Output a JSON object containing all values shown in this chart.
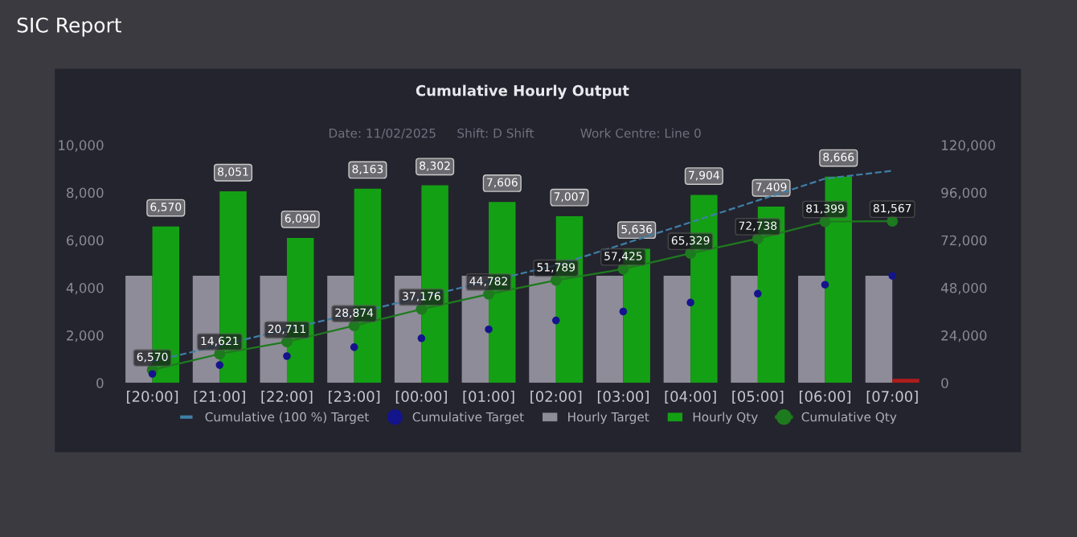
{
  "chart_data": {
    "type": "bar",
    "title": "Cumulative Hourly Output",
    "annotations": [
      "SIC Report",
      "Date: 11/02/2025",
      "Shift: D Shift",
      "Work Centre: Line 0"
    ],
    "categories": [
      "[20:00]",
      "[21:00]",
      "[22:00]",
      "[23:00]",
      "[00:00]",
      "[01:00]",
      "[02:00]",
      "[03:00]",
      "[04:00]",
      "[05:00]",
      "[06:00]",
      "[07:00]"
    ],
    "series": [
      {
        "name": "Cumulative (100 %) Target",
        "type": "line",
        "axis": "y2",
        "color": "#3f7fa6",
        "line_style": "dashed",
        "values": [
          10800,
          18900,
          27000,
          35100,
          43200,
          51300,
          59300,
          70000,
          81000,
          92000,
          103000,
          107000
        ]
      },
      {
        "name": "Cumulative Target",
        "type": "scatter",
        "axis": "y2",
        "color": "#14148c",
        "marker": "circle",
        "values": [
          4500,
          9000,
          13500,
          18000,
          22500,
          27000,
          31500,
          36000,
          40500,
          45000,
          49500,
          54000
        ]
      },
      {
        "name": "Hourly Target",
        "color": "#8e8c98",
        "values": [
          4500,
          4500,
          4500,
          4500,
          4500,
          4500,
          4500,
          4500,
          4500,
          4500,
          4500,
          4500
        ]
      },
      {
        "name": "Hourly Qty",
        "color": "#14a014",
        "colors": [
          "#14a014",
          "#14a014",
          "#14a014",
          "#14a014",
          "#14a014",
          "#14a014",
          "#14a014",
          "#14a014",
          "#14a014",
          "#14a014",
          "#14a014",
          "#b01c1c"
        ],
        "values": [
          6570,
          8051,
          6090,
          8163,
          8302,
          7606,
          7007,
          5636,
          7904,
          7409,
          8666,
          168
        ],
        "value_labels": [
          "6,570",
          "8,051",
          "6,090",
          "8,163",
          "8,302",
          "7,606",
          "7,007",
          "5,636",
          "7,904",
          "7,409",
          "8,666",
          null
        ]
      },
      {
        "name": "Cumulative Qty",
        "type": "line",
        "axis": "y2",
        "color": "#1e7a1e",
        "marker": "circle",
        "values": [
          6570,
          14621,
          20711,
          28874,
          37176,
          44782,
          51789,
          57425,
          65329,
          72738,
          81399,
          81567
        ],
        "value_labels": [
          "6,570",
          "14,621",
          "20,711",
          "28,874",
          "37,176",
          "44,782",
          "51,789",
          "57,425",
          "65,329",
          "72,738",
          "81,399",
          "81,567"
        ]
      }
    ],
    "ylim": [
      0,
      10000
    ],
    "yticks": [
      {
        "value": 0,
        "label": "0"
      },
      {
        "value": 2000,
        "label": "2,000"
      },
      {
        "value": 4000,
        "label": "4,000"
      },
      {
        "value": 6000,
        "label": "6,000"
      },
      {
        "value": 8000,
        "label": "8,000"
      },
      {
        "value": 10000,
        "label": "10,000"
      }
    ],
    "y2lim": [
      0,
      120000
    ],
    "y2ticks": [
      {
        "value": 0,
        "label": "0"
      },
      {
        "value": 24000,
        "label": "24,000"
      },
      {
        "value": 48000,
        "label": "48,000"
      },
      {
        "value": 72000,
        "label": "72,000"
      },
      {
        "value": 96000,
        "label": "96,000"
      },
      {
        "value": 120000,
        "label": "120,000"
      }
    ],
    "grid": false,
    "legend": "bottom"
  }
}
